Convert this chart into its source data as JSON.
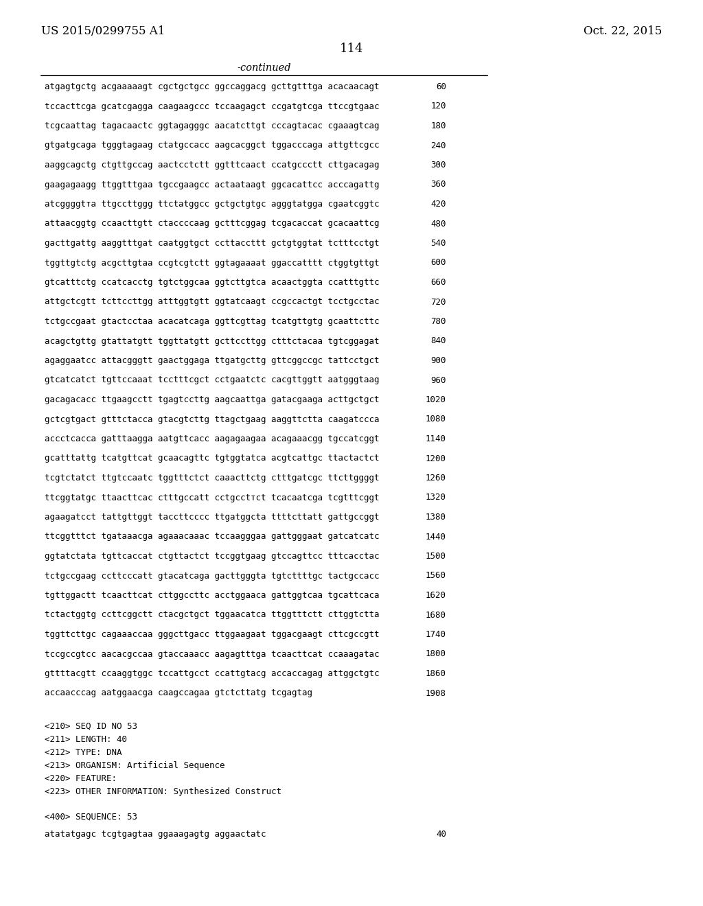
{
  "header_left": "US 2015/0299755 A1",
  "header_right": "Oct. 22, 2015",
  "page_number": "114",
  "continued_text": "-continued",
  "background_color": "#ffffff",
  "text_color": "#000000",
  "sequence_lines": [
    [
      "atgagtgctg acgaaaaagt cgctgctgcc ggccaggacg gcttgtttga acacaacagt",
      "60"
    ],
    [
      "tccacttcga gcatcgagga caagaagccc tccaagagct ccgatgtcga ttccgtgaac",
      "120"
    ],
    [
      "tcgcaattag tagacaactc ggtagagggc aacatcttgt cccagtacac cgaaagtcag",
      "180"
    ],
    [
      "gtgatgcaga tgggtagaag ctatgccacc aagcacggct tggacccaga attgttcgcc",
      "240"
    ],
    [
      "aaggcagctg ctgttgccag aactcctctt ggtttcaact ccatgccctt cttgacagag",
      "300"
    ],
    [
      "gaagagaagg ttggtttgaa tgccgaagcc actaataagt ggcacattcc acccagattg",
      "360"
    ],
    [
      "atcggggtта ttgccttggg ttctatggcc gctgctgtgc agggtatgga cgaatcggtc",
      "420"
    ],
    [
      "attaacggtg ccaacttgtt ctaccccaag gctttcggag tcgacaccat gcacaattcg",
      "480"
    ],
    [
      "gacttgattg aaggtttgat caatggtgct ccttaccttt gctgtggtat tctttcctgt",
      "540"
    ],
    [
      "tggttgtctg acgcttgtaa ccgtcgtctt ggtagaaaat ggaccatttt ctggtgttgt",
      "600"
    ],
    [
      "gtcatttctg ccatcacctg tgtctggcaa ggtcttgtca acaactggta ccatttgttc",
      "660"
    ],
    [
      "attgctcgtt tcttccttgg atttggtgtt ggtatcaagt ccgccactgt tcctgcctac",
      "720"
    ],
    [
      "tctgccgaat gtactcctaa acacatcaga ggttcgttag tcatgttgtg gcaattcttc",
      "780"
    ],
    [
      "acagctgttg gtattatgtt tggttatgtt gcttccttgg ctttctacaa tgtcggagat",
      "840"
    ],
    [
      "agaggaatcc attacgggtt gaactggaga ttgatgcttg gttcggccgc tattcctgct",
      "900"
    ],
    [
      "gtcatcatct tgttccaaat tcctttcgct cctgaatctc cacgttggtt aatgggtaag",
      "960"
    ],
    [
      "gacagacacc ttgaagcctt tgagtccttg aagcaattga gatacgaaga acttgctgct",
      "1020"
    ],
    [
      "gctcgtgact gtttctacca gtacgtcttg ttagctgaag aaggttctta caagatccca",
      "1080"
    ],
    [
      "accctcacca gatttaagga aatgttcacc aagagaagaa acagaaacgg tgccatcggt",
      "1140"
    ],
    [
      "gcatttattg tcatgttcat gcaacagttc tgtggtatca acgtcattgc ttactactct",
      "1200"
    ],
    [
      "tcgtctatct ttgtccaatc tggtttctct caaacttctg ctttgatcgc ttcttggggt",
      "1260"
    ],
    [
      "ttcggtatgc ttaacttcac ctttgccatt cctgcctтct tcacaatcga tcgtttcggt",
      "1320"
    ],
    [
      "agaagatcct tattgttggt taccttcccc ttgatggcta ttttcttatt gattgccggt",
      "1380"
    ],
    [
      "ttcggtttct tgataaacga agaaacaaac tccaagggaa gattgggaat gatcatcatc",
      "1440"
    ],
    [
      "ggtatctata tgttcaccat ctgttactct tccggtgaag gtccagttcc tttcacctac",
      "1500"
    ],
    [
      "tctgccgaag ccttcccatt gtacatcaga gacttgggta tgtcttttgc tactgccacc",
      "1560"
    ],
    [
      "tgttggactt tcaacttcat cttggccttc acctggaaca gattggtcaa tgcattcaca",
      "1620"
    ],
    [
      "tctactggtg ccttcggctt ctacgctgct tggaacatca ttggtttctt cttggtctta",
      "1680"
    ],
    [
      "tggttcttgc cagaaaccaa gggcttgacc ttggaagaat tggacgaagt cttcgccgtt",
      "1740"
    ],
    [
      "tccgccgtcc aacacgccaa gtaccaaacc aagagtttga tcaacttcat ccaaagatac",
      "1800"
    ],
    [
      "gttttacgtt ccaaggtggc tccattgcct ccattgtacg accaccagag attggctgtc",
      "1860"
    ],
    [
      "accaacccag aatggaacga caagccagaa gtctcttatg tcgagtag",
      "1908"
    ]
  ],
  "metadata_lines": [
    "<210> SEQ ID NO 53",
    "<211> LENGTH: 40",
    "<212> TYPE: DNA",
    "<213> ORGANISM: Artificial Sequence",
    "<220> FEATURE:",
    "<223> OTHER INFORMATION: Synthesized Construct"
  ],
  "sequence_label": "<400> SEQUENCE: 53",
  "final_sequence": [
    "atatatgagc tcgtgagtaa ggaaagagtg aggaactatc",
    "40"
  ]
}
